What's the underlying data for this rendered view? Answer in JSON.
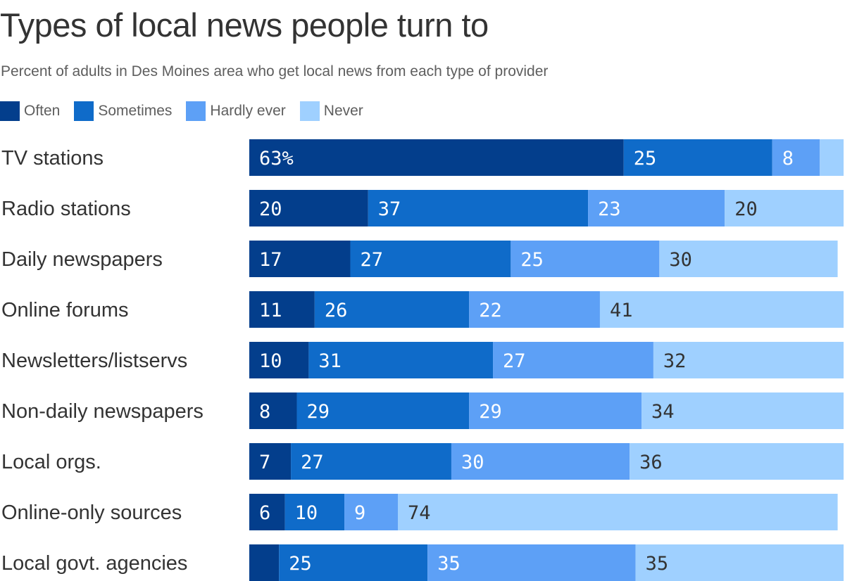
{
  "chart_data": {
    "type": "bar",
    "orientation": "horizontal",
    "stacked": true,
    "title": "Types of local news people turn to",
    "subtitle": "Percent of adults in Des Moines area who get local news from each type of provider",
    "categories": [
      "TV stations",
      "Radio stations",
      "Daily newspapers",
      "Online forums",
      "Newsletters/listservs",
      "Non-daily newspapers",
      "Local orgs.",
      "Online-only sources",
      "Local govt. agencies"
    ],
    "series": [
      {
        "name": "Often",
        "color": "#033e8c",
        "label_color": "#ffffff",
        "values": [
          63,
          20,
          17,
          11,
          10,
          8,
          7,
          6,
          5
        ]
      },
      {
        "name": "Sometimes",
        "color": "#0f6bc9",
        "label_color": "#ffffff",
        "values": [
          25,
          37,
          27,
          26,
          31,
          29,
          27,
          10,
          25
        ]
      },
      {
        "name": "Hardly ever",
        "color": "#5da0f6",
        "label_color": "#ffffff",
        "values": [
          8,
          23,
          25,
          22,
          27,
          29,
          30,
          9,
          35
        ]
      },
      {
        "name": "Never",
        "color": "#9fd0ff",
        "label_color": "#333333",
        "values": [
          4,
          20,
          30,
          41,
          32,
          34,
          36,
          74,
          35
        ]
      }
    ],
    "value_labels": [
      [
        "63%",
        "25",
        "8",
        ""
      ],
      [
        "20",
        "37",
        "23",
        "20"
      ],
      [
        "17",
        "27",
        "25",
        "30"
      ],
      [
        "11",
        "26",
        "22",
        "41"
      ],
      [
        "10",
        "31",
        "27",
        "32"
      ],
      [
        "8",
        "29",
        "29",
        "34"
      ],
      [
        "7",
        "27",
        "30",
        "36"
      ],
      [
        "6",
        "10",
        "9",
        "74"
      ],
      [
        "",
        "25",
        "35",
        "35"
      ]
    ],
    "xlim": [
      0,
      100
    ],
    "legend_position": "top-left",
    "grid": false
  }
}
